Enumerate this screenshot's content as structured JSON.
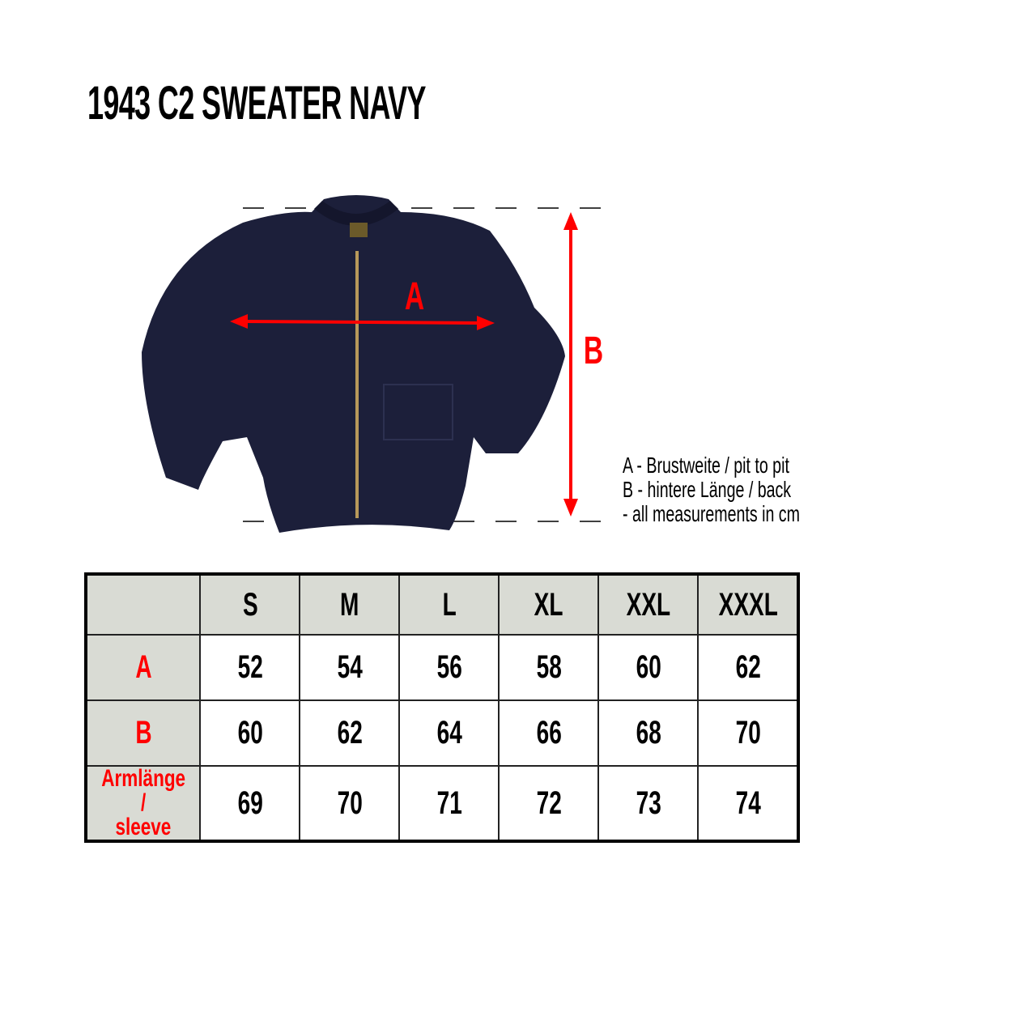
{
  "title": "1943 C2 SWEATER NAVY",
  "diagram": {
    "label_a": "A",
    "label_b": "B",
    "arrow_color": "#ff0000",
    "garment_color": "#1c1f3a",
    "zipper_color": "#b8995a"
  },
  "legend": [
    "A - Brustweite / pit to pit",
    "B - hintere Länge / back",
    "- all measurements in cm"
  ],
  "table": {
    "sizes": [
      "S",
      "M",
      "L",
      "XL",
      "XXL",
      "XXXL"
    ],
    "rows": [
      {
        "label": "A",
        "values": [
          "52",
          "54",
          "56",
          "58",
          "60",
          "62"
        ]
      },
      {
        "label": "B",
        "values": [
          "60",
          "62",
          "64",
          "66",
          "68",
          "70"
        ]
      },
      {
        "label_line1": "Armlänge /",
        "label_line2": "sleeve",
        "values": [
          "69",
          "70",
          "71",
          "72",
          "73",
          "74"
        ]
      }
    ],
    "header_bg": "#d9dbd4",
    "label_color": "#ff0000"
  }
}
